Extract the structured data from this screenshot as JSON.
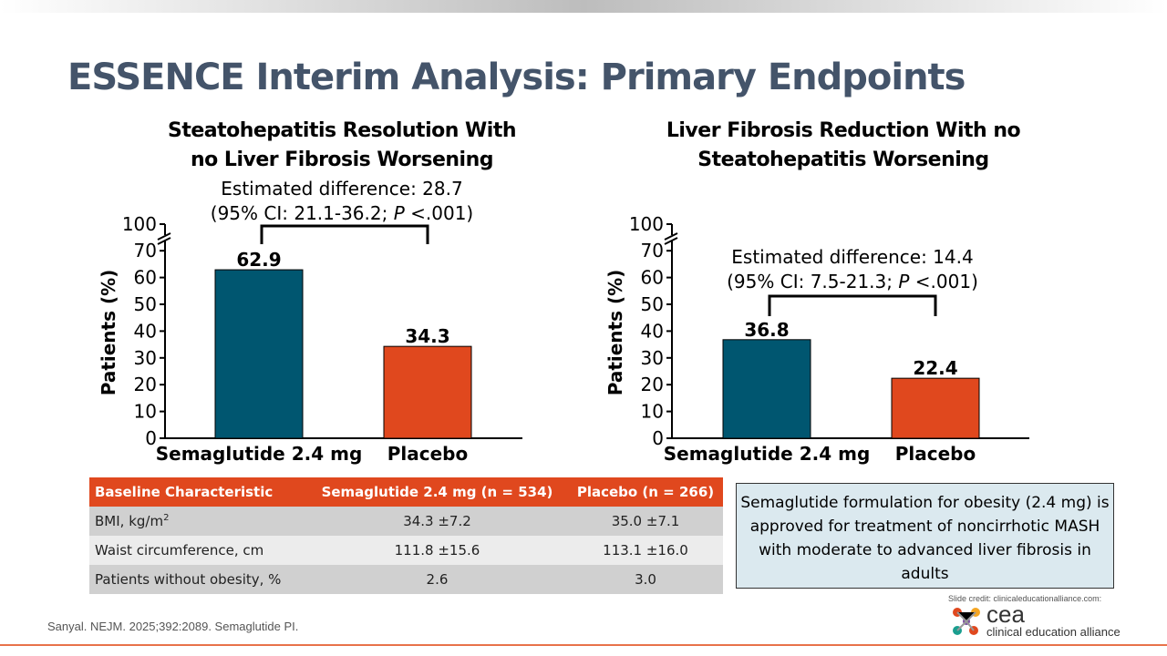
{
  "title": "ESSENCE Interim Analysis: Primary Endpoints",
  "chart_data": [
    {
      "type": "bar",
      "title": "Steatohepatitis Resolution With no Liver Fibrosis Worsening",
      "title_lines": [
        "Steatohepatitis Resolution With",
        "no Liver Fibrosis Worsening"
      ],
      "annotation": [
        "Estimated difference: 28.7",
        "(95% CI: 21.1-36.2; ",
        "P",
        " <.001)"
      ],
      "categories": [
        "Semaglutide 2.4 mg",
        "Placebo"
      ],
      "values": [
        62.9,
        34.3
      ],
      "value_labels": [
        "62.9",
        "34.3"
      ],
      "ylabel": "Patients (%)",
      "yticks": [
        "0",
        "10",
        "20",
        "30",
        "40",
        "50",
        "60",
        "70",
        "100"
      ],
      "ylim": [
        0,
        100
      ],
      "axis_break": true
    },
    {
      "type": "bar",
      "title": "Liver Fibrosis Reduction With no Steatohepatitis Worsening",
      "title_lines": [
        "Liver Fibrosis Reduction With no",
        "Steatohepatitis Worsening"
      ],
      "annotation": [
        "Estimated difference: 14.4",
        "(95% CI: 7.5-21.3; ",
        "P",
        " <.001)"
      ],
      "categories": [
        "Semaglutide 2.4 mg",
        "Placebo"
      ],
      "values": [
        36.8,
        22.4
      ],
      "value_labels": [
        "36.8",
        "22.4"
      ],
      "ylabel": "Patients (%)",
      "yticks": [
        "0",
        "10",
        "20",
        "30",
        "40",
        "50",
        "60",
        "70",
        "100"
      ],
      "ylim": [
        0,
        100
      ],
      "axis_break": true
    }
  ],
  "colors": {
    "semaglutide": "#005670",
    "placebo": "#e0481e"
  },
  "table": {
    "headers": [
      "Baseline Characteristic",
      "Semaglutide 2.4 mg (n = 534)",
      "Placebo (n = 266)"
    ],
    "rows": [
      [
        "BMI, kg/m",
        "2",
        "34.3 ±7.2",
        "35.0 ±7.1"
      ],
      [
        "Waist circumference, cm",
        "111.8 ±15.6",
        "113.1 ±16.0"
      ],
      [
        "Patients without obesity, %",
        "2.6",
        "3.0"
      ]
    ]
  },
  "note": "Semaglutide formulation for obesity (2.4 mg) is approved for treatment of noncirrhotic MASH with moderate to advanced liver fibrosis in adults",
  "citation": "Sanyal. NEJM. 2025;392:2089. Semaglutide PI.",
  "credit": "Slide credit: clinicaleducationalliance.com:",
  "logo": {
    "short": "cea",
    "long": "clinical education alliance"
  }
}
